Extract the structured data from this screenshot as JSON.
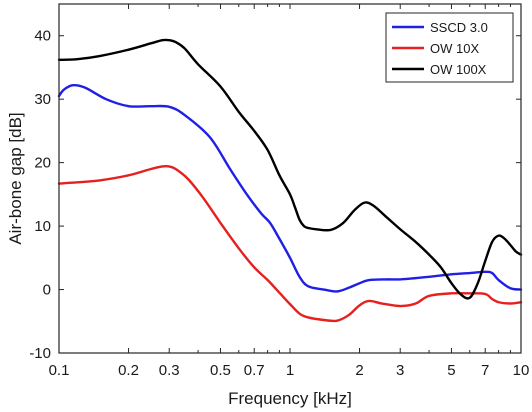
{
  "chart_data": {
    "type": "line",
    "xlabel": "Frequency [kHz]",
    "ylabel": "Air-bone gap [dB]",
    "xscale": "log",
    "xlim": [
      0.1,
      10
    ],
    "ylim": [
      -10,
      45
    ],
    "xticks": [
      0.1,
      0.2,
      0.3,
      0.5,
      0.7,
      1,
      2,
      3,
      5,
      7,
      10
    ],
    "xtick_labels": [
      "0.1",
      "0.2",
      "0.3",
      "0.5",
      "0.7",
      "1",
      "2",
      "3",
      "5",
      "7",
      "10"
    ],
    "yticks": [
      -10,
      0,
      10,
      20,
      30,
      40
    ],
    "ytick_labels": [
      "-10",
      "0",
      "10",
      "20",
      "30",
      "40"
    ],
    "grid": false,
    "legend_position": "top-right",
    "series": [
      {
        "name": "SSCD 3.0",
        "color": "#1f1fe6",
        "x": [
          0.1,
          0.105,
          0.115,
          0.13,
          0.16,
          0.2,
          0.25,
          0.3,
          0.35,
          0.45,
          0.55,
          0.65,
          0.75,
          0.82,
          0.9,
          1.0,
          1.1,
          1.2,
          1.4,
          1.6,
          1.8,
          2.0,
          2.2,
          2.6,
          3.0,
          3.5,
          4.0,
          5.0,
          6.0,
          7.0,
          7.5,
          8.0,
          9.0,
          10.0
        ],
        "y": [
          30.5,
          31.5,
          32.2,
          31.8,
          30.0,
          28.9,
          28.9,
          28.8,
          27.5,
          24.0,
          19.0,
          15.0,
          12.0,
          10.5,
          8.0,
          5.0,
          2.0,
          0.5,
          0.0,
          -0.3,
          0.3,
          1.0,
          1.5,
          1.6,
          1.6,
          1.8,
          2.0,
          2.4,
          2.6,
          2.8,
          2.6,
          1.5,
          0.2,
          0.0
        ]
      },
      {
        "name": "OW 10X",
        "color": "#e61f1f",
        "x": [
          0.1,
          0.12,
          0.15,
          0.2,
          0.25,
          0.28,
          0.3,
          0.32,
          0.36,
          0.42,
          0.5,
          0.6,
          0.7,
          0.8,
          0.9,
          1.0,
          1.1,
          1.2,
          1.4,
          1.6,
          1.8,
          2.0,
          2.2,
          2.5,
          3.0,
          3.5,
          4.0,
          5.0,
          6.0,
          7.0,
          7.5,
          8.0,
          9.0,
          10.0
        ],
        "y": [
          16.7,
          16.9,
          17.2,
          18.0,
          19.0,
          19.4,
          19.4,
          19.0,
          17.5,
          14.5,
          10.5,
          6.5,
          3.5,
          1.5,
          -0.5,
          -2.3,
          -3.8,
          -4.4,
          -4.8,
          -4.9,
          -4.0,
          -2.5,
          -1.8,
          -2.2,
          -2.6,
          -2.2,
          -1.0,
          -0.6,
          -0.6,
          -0.7,
          -1.5,
          -2.0,
          -2.2,
          -2.0
        ]
      },
      {
        "name": "OW 100X",
        "color": "#000000",
        "x": [
          0.1,
          0.12,
          0.15,
          0.2,
          0.25,
          0.28,
          0.3,
          0.32,
          0.35,
          0.4,
          0.5,
          0.6,
          0.7,
          0.8,
          0.9,
          1.0,
          1.05,
          1.1,
          1.15,
          1.2,
          1.3,
          1.5,
          1.7,
          1.9,
          2.1,
          2.3,
          2.6,
          3.0,
          3.5,
          4.0,
          4.5,
          5.0,
          5.5,
          6.0,
          6.5,
          7.0,
          7.5,
          8.0,
          8.5,
          9.0,
          9.5,
          10.0
        ],
        "y": [
          36.2,
          36.3,
          36.8,
          37.8,
          38.8,
          39.3,
          39.3,
          39.0,
          38.0,
          35.5,
          32.0,
          28.0,
          25.0,
          22.0,
          18.0,
          15.0,
          13.0,
          11.0,
          10.0,
          9.7,
          9.5,
          9.4,
          10.5,
          12.5,
          13.7,
          13.2,
          11.5,
          9.5,
          7.5,
          5.5,
          3.5,
          1.0,
          -0.8,
          -1.3,
          1.0,
          4.5,
          7.5,
          8.5,
          8.0,
          7.0,
          6.0,
          5.5
        ]
      }
    ]
  }
}
